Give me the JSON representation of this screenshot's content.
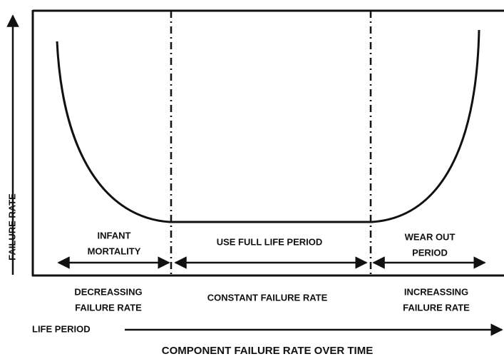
{
  "diagram": {
    "title": "COMPONENT FAILURE RATE OVER TIME",
    "y_axis_label": "FAILURE RATE",
    "x_axis_label": "LIFE PERIOD",
    "phases": [
      {
        "label_lines": [
          "INFANT",
          "MORTALITY"
        ],
        "rate_lines": [
          "DECREASSING",
          "FAILURE RATE"
        ]
      },
      {
        "label_lines": [
          "USE FULL LIFE PERIOD"
        ],
        "rate_lines": [
          "CONSTANT FAILURE RATE"
        ]
      },
      {
        "label_lines": [
          "WEAR OUT",
          "PERIOD"
        ],
        "rate_lines": [
          "INCREASSING",
          "FAILURE RATE"
        ]
      }
    ]
  }
}
